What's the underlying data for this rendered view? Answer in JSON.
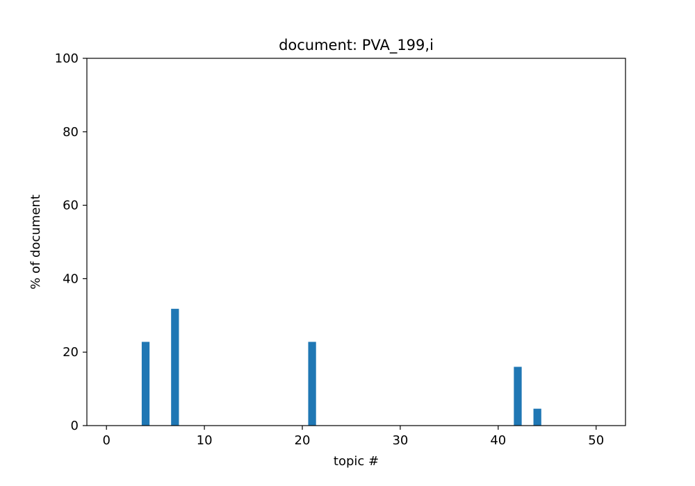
{
  "chart_data": {
    "type": "bar",
    "title": "document: PVA_199,i",
    "xlabel": "topic #",
    "ylabel": "% of document",
    "xlim": [
      -2,
      53
    ],
    "ylim": [
      0,
      100
    ],
    "xticks": [
      0,
      10,
      20,
      30,
      40,
      50
    ],
    "yticks": [
      0,
      20,
      40,
      60,
      80,
      100
    ],
    "bar_color": "#1f77b4",
    "grid": false,
    "legend": "none",
    "bars": [
      {
        "topic": 4,
        "value": 22.8
      },
      {
        "topic": 7,
        "value": 31.8
      },
      {
        "topic": 21,
        "value": 22.8
      },
      {
        "topic": 42,
        "value": 16.0
      },
      {
        "topic": 44,
        "value": 4.6
      }
    ]
  }
}
